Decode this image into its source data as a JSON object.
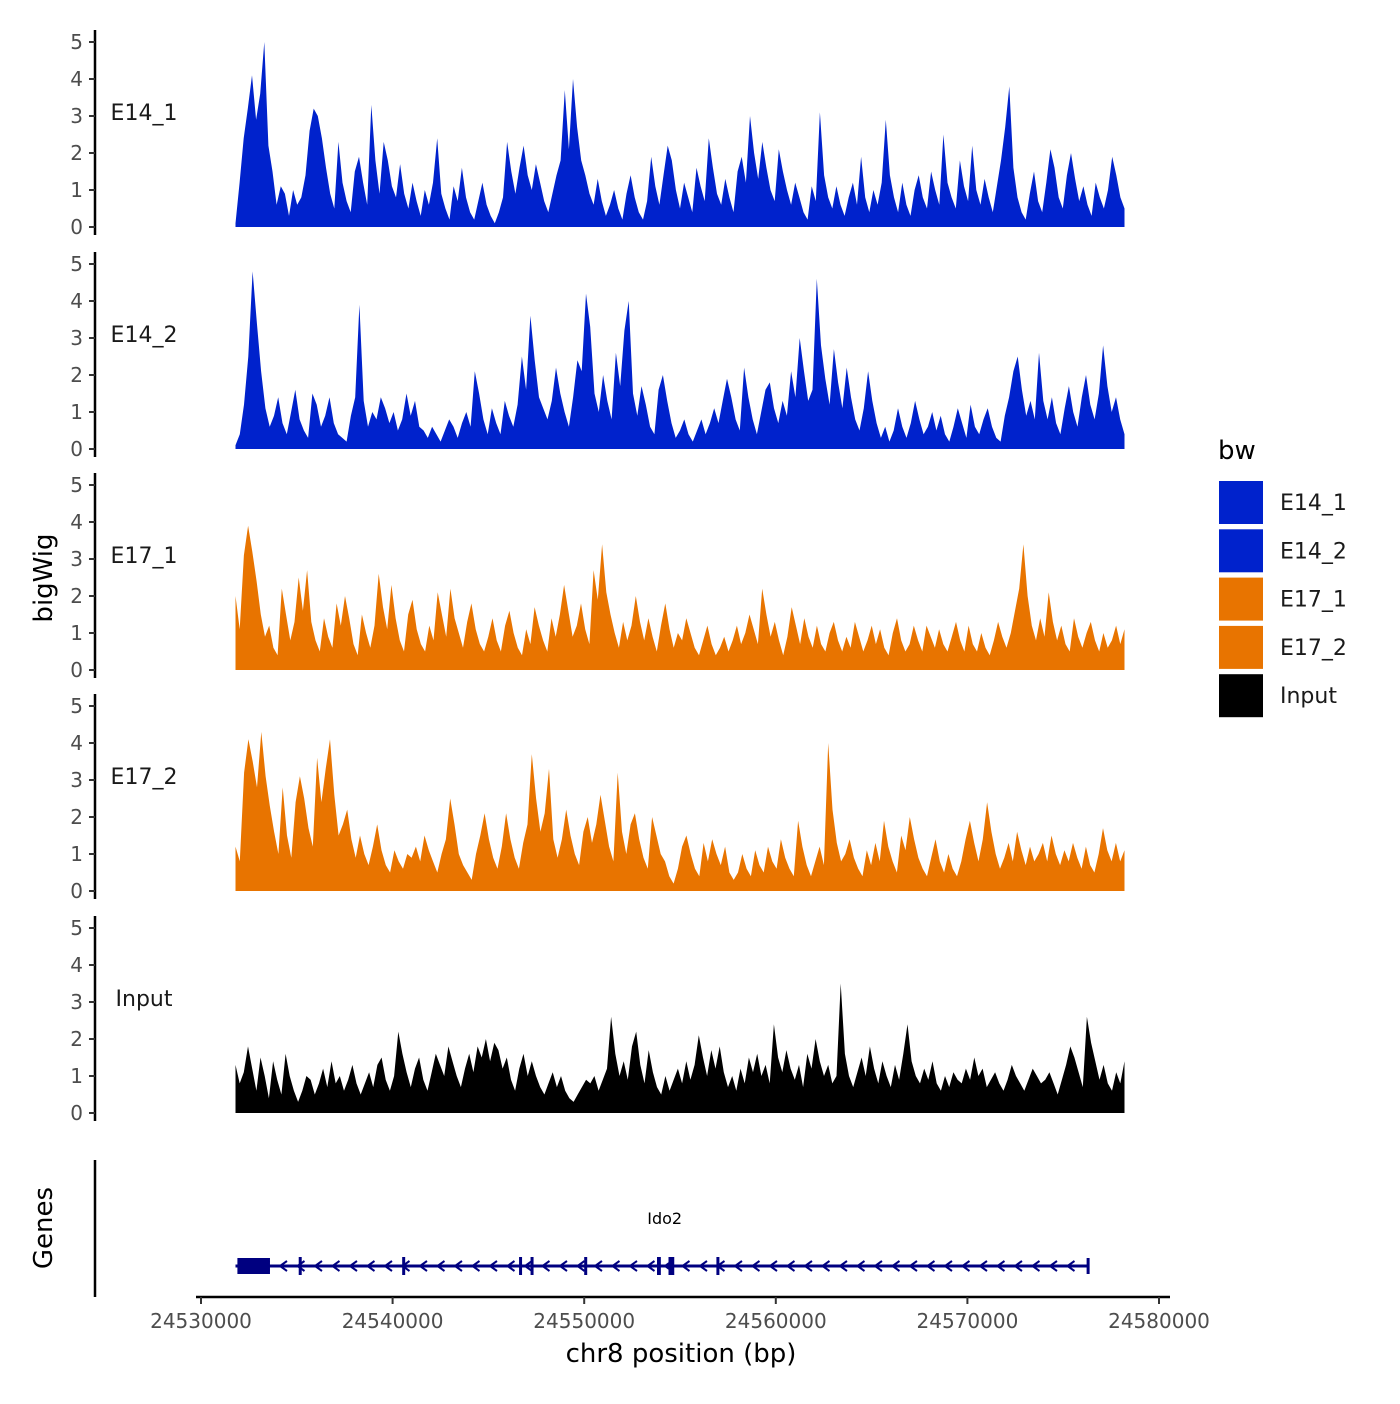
{
  "chart_data": {
    "type": "area",
    "title": "",
    "ylabel": "bigWig",
    "xlabel": "chr8 position (bp)",
    "gene_track_label": "Genes",
    "x_range": [
      24531800,
      24578200
    ],
    "xlim": [
      24529700,
      24580500
    ],
    "ylim": [
      0,
      5
    ],
    "y_ticks": [
      "0",
      "1",
      "2",
      "3",
      "4",
      "5"
    ],
    "x_ticks": [
      {
        "value": 24530000,
        "label": "24530000"
      },
      {
        "value": 24540000,
        "label": "24540000"
      },
      {
        "value": 24550000,
        "label": "24550000"
      },
      {
        "value": 24560000,
        "label": "24560000"
      },
      {
        "value": 24570000,
        "label": "24570000"
      },
      {
        "value": 24580000,
        "label": "24580000"
      }
    ],
    "legend": {
      "title": "bw",
      "position": "right",
      "entries": [
        {
          "name": "E14_1",
          "color": "#0022CC"
        },
        {
          "name": "E14_2",
          "color": "#0022CC"
        },
        {
          "name": "E17_1",
          "color": "#E87400"
        },
        {
          "name": "E17_2",
          "color": "#E87400"
        },
        {
          "name": "Input",
          "color": "#000000"
        }
      ]
    },
    "series": [
      {
        "name": "E14_1",
        "color": "#0022CC",
        "values": [
          0.1,
          1.2,
          2.4,
          3.2,
          4.1,
          2.9,
          3.6,
          5.0,
          2.2,
          1.5,
          0.6,
          1.1,
          0.9,
          0.3,
          1.0,
          0.6,
          0.8,
          1.4,
          2.6,
          3.2,
          3.0,
          2.4,
          1.6,
          0.9,
          0.5,
          2.3,
          1.2,
          0.7,
          0.4,
          1.5,
          1.9,
          1.2,
          0.6,
          3.3,
          1.8,
          0.9,
          2.3,
          1.8,
          1.1,
          0.8,
          1.7,
          0.9,
          0.5,
          1.2,
          0.7,
          0.3,
          1.0,
          0.6,
          1.2,
          2.4,
          0.9,
          0.5,
          0.2,
          1.1,
          0.7,
          1.6,
          0.8,
          0.4,
          0.2,
          0.7,
          1.2,
          0.6,
          0.3,
          0.1,
          0.4,
          0.8,
          2.3,
          1.5,
          0.9,
          1.6,
          2.2,
          1.4,
          1.0,
          1.7,
          1.2,
          0.7,
          0.4,
          0.9,
          1.4,
          1.8,
          3.7,
          2.1,
          4.0,
          2.7,
          1.8,
          1.4,
          0.9,
          0.6,
          1.3,
          0.7,
          0.3,
          0.6,
          1.0,
          0.5,
          0.2,
          0.9,
          1.4,
          0.8,
          0.4,
          0.2,
          0.7,
          1.9,
          1.1,
          0.6,
          1.4,
          2.2,
          1.8,
          1.0,
          0.5,
          1.2,
          0.8,
          0.4,
          1.6,
          1.1,
          0.7,
          2.4,
          1.6,
          0.9,
          0.6,
          1.3,
          0.8,
          0.4,
          1.5,
          1.9,
          1.2,
          3.0,
          2.0,
          1.3,
          2.3,
          1.6,
          1.0,
          0.7,
          2.1,
          1.5,
          1.0,
          0.6,
          1.2,
          0.8,
          0.4,
          0.2,
          1.1,
          0.7,
          3.1,
          1.4,
          0.8,
          0.5,
          1.1,
          0.6,
          0.3,
          0.8,
          1.2,
          0.6,
          1.9,
          0.8,
          0.4,
          1.0,
          0.6,
          1.2,
          2.9,
          1.4,
          0.8,
          0.4,
          1.2,
          0.6,
          0.3,
          1.0,
          1.4,
          0.8,
          0.5,
          1.5,
          1.0,
          0.6,
          2.5,
          1.2,
          0.8,
          0.5,
          1.8,
          1.1,
          0.7,
          2.2,
          1.0,
          0.6,
          1.3,
          0.8,
          0.4,
          1.1,
          1.8,
          2.7,
          3.8,
          1.6,
          0.8,
          0.4,
          0.2,
          0.9,
          1.5,
          0.7,
          0.4,
          1.2,
          2.1,
          1.6,
          0.8,
          0.5,
          1.4,
          2.0,
          1.3,
          0.7,
          1.1,
          0.6,
          0.3,
          1.2,
          0.8,
          0.5,
          1.0,
          1.9,
          1.4,
          0.8,
          0.5
        ]
      },
      {
        "name": "E14_2",
        "color": "#0022CC",
        "values": [
          0.1,
          0.4,
          1.2,
          2.5,
          4.8,
          3.4,
          2.1,
          1.1,
          0.6,
          0.9,
          1.4,
          0.7,
          0.4,
          1.0,
          1.6,
          0.8,
          0.5,
          0.3,
          1.5,
          1.2,
          0.6,
          0.9,
          1.4,
          0.7,
          0.4,
          0.3,
          0.2,
          0.9,
          1.4,
          3.9,
          1.3,
          0.6,
          1.0,
          0.8,
          1.4,
          1.1,
          0.7,
          1.0,
          0.5,
          0.8,
          1.5,
          0.9,
          1.3,
          0.6,
          0.5,
          0.3,
          0.6,
          0.4,
          0.2,
          0.5,
          0.8,
          0.6,
          0.3,
          0.7,
          1.0,
          0.6,
          2.1,
          1.5,
          0.8,
          0.4,
          1.1,
          0.7,
          0.4,
          1.3,
          0.9,
          0.6,
          1.2,
          2.5,
          1.6,
          3.6,
          2.4,
          1.4,
          1.1,
          0.8,
          1.3,
          2.2,
          1.5,
          1.0,
          0.6,
          1.4,
          2.4,
          2.1,
          4.2,
          3.3,
          1.5,
          1.0,
          2.0,
          1.3,
          0.8,
          2.6,
          1.7,
          3.2,
          4.0,
          1.5,
          0.9,
          1.7,
          1.2,
          0.6,
          0.4,
          1.6,
          2.0,
          1.3,
          0.7,
          0.3,
          0.5,
          0.8,
          0.4,
          0.2,
          0.5,
          0.8,
          0.4,
          0.7,
          1.1,
          0.7,
          1.3,
          1.9,
          1.4,
          0.8,
          0.5,
          2.2,
          1.4,
          0.8,
          0.4,
          1.0,
          1.6,
          1.8,
          1.1,
          0.7,
          1.3,
          0.9,
          2.1,
          1.4,
          3.0,
          2.1,
          1.3,
          1.6,
          4.6,
          2.8,
          1.9,
          1.2,
          2.7,
          1.8,
          1.1,
          2.2,
          1.4,
          0.8,
          0.5,
          1.1,
          2.1,
          1.3,
          0.7,
          0.3,
          0.6,
          0.2,
          0.5,
          1.1,
          0.6,
          0.3,
          0.7,
          1.3,
          0.8,
          0.4,
          0.6,
          1.0,
          0.5,
          0.9,
          0.4,
          0.2,
          0.6,
          1.1,
          0.7,
          0.3,
          1.2,
          0.6,
          0.4,
          0.8,
          1.1,
          0.6,
          0.3,
          0.2,
          0.9,
          1.4,
          2.1,
          2.5,
          1.6,
          0.9,
          1.3,
          0.8,
          2.6,
          1.3,
          0.8,
          1.4,
          0.7,
          0.4,
          1.1,
          1.7,
          1.0,
          0.6,
          1.4,
          2.0,
          1.2,
          0.8,
          1.5,
          2.8,
          1.7,
          1.0,
          1.4,
          0.8,
          0.4
        ]
      },
      {
        "name": "E17_1",
        "color": "#E87400",
        "values": [
          2.0,
          1.1,
          3.1,
          3.9,
          3.2,
          2.4,
          1.5,
          0.9,
          1.2,
          0.6,
          0.4,
          2.2,
          1.5,
          0.8,
          1.3,
          2.5,
          1.6,
          2.7,
          1.3,
          0.8,
          0.5,
          1.4,
          0.9,
          0.6,
          1.8,
          1.2,
          2.0,
          1.4,
          0.7,
          0.4,
          1.5,
          1.0,
          0.6,
          1.2,
          2.6,
          1.7,
          1.1,
          2.3,
          1.4,
          0.8,
          0.5,
          1.5,
          1.9,
          1.1,
          0.7,
          0.5,
          1.2,
          0.8,
          2.1,
          1.5,
          0.9,
          2.2,
          1.4,
          1.0,
          0.6,
          1.3,
          1.8,
          1.1,
          0.7,
          0.5,
          0.9,
          1.4,
          0.8,
          0.5,
          1.2,
          1.6,
          1.0,
          0.6,
          0.4,
          1.1,
          0.7,
          1.7,
          1.2,
          0.8,
          0.5,
          1.4,
          0.9,
          1.5,
          2.3,
          1.6,
          0.9,
          1.2,
          1.8,
          1.1,
          0.7,
          2.7,
          1.9,
          3.4,
          2.1,
          1.5,
          1.0,
          0.6,
          1.3,
          0.8,
          1.2,
          2.0,
          1.3,
          0.8,
          1.4,
          0.9,
          0.5,
          1.2,
          1.8,
          1.1,
          0.6,
          1.0,
          0.8,
          1.4,
          1.0,
          0.6,
          0.4,
          0.8,
          1.2,
          0.7,
          0.4,
          0.6,
          0.9,
          0.5,
          0.8,
          1.2,
          0.7,
          1.0,
          1.5,
          1.1,
          0.7,
          2.2,
          1.5,
          0.9,
          1.3,
          0.8,
          0.4,
          0.9,
          1.7,
          1.2,
          0.7,
          1.4,
          0.9,
          0.6,
          1.2,
          0.7,
          0.5,
          1.0,
          1.3,
          0.8,
          0.5,
          0.9,
          0.6,
          1.3,
          0.9,
          0.5,
          0.8,
          1.2,
          0.7,
          1.1,
          0.6,
          0.4,
          1.0,
          1.4,
          0.8,
          0.5,
          0.7,
          1.2,
          0.8,
          0.5,
          1.2,
          0.9,
          0.6,
          1.1,
          0.7,
          0.5,
          0.9,
          1.3,
          0.8,
          0.5,
          1.2,
          0.7,
          0.5,
          1.0,
          0.6,
          0.4,
          0.8,
          1.3,
          0.9,
          0.6,
          1.0,
          1.6,
          2.2,
          3.4,
          2.0,
          1.2,
          0.8,
          1.4,
          0.9,
          2.1,
          1.3,
          0.8,
          1.2,
          0.7,
          0.5,
          1.4,
          0.9,
          0.6,
          1.0,
          1.3,
          0.8,
          0.5,
          1.0,
          0.6,
          0.8,
          1.2,
          0.7,
          1.1
        ]
      },
      {
        "name": "E17_2",
        "color": "#E87400",
        "values": [
          1.2,
          0.8,
          3.2,
          4.1,
          3.5,
          2.8,
          4.3,
          3.1,
          2.3,
          1.6,
          1.0,
          2.8,
          1.5,
          0.9,
          2.4,
          3.1,
          2.5,
          1.7,
          1.2,
          3.6,
          2.4,
          3.3,
          4.1,
          2.6,
          1.5,
          1.8,
          2.2,
          1.4,
          0.9,
          1.5,
          1.0,
          0.7,
          1.2,
          1.8,
          1.1,
          0.7,
          0.5,
          1.1,
          0.8,
          0.6,
          1.0,
          0.9,
          1.2,
          0.8,
          1.5,
          1.1,
          0.8,
          0.5,
          1.0,
          1.4,
          2.5,
          1.8,
          1.0,
          0.7,
          0.5,
          0.3,
          1.0,
          1.5,
          2.1,
          1.4,
          0.9,
          0.6,
          1.2,
          2.1,
          1.4,
          0.9,
          0.6,
          1.3,
          1.8,
          3.7,
          2.5,
          1.6,
          2.1,
          3.3,
          1.4,
          0.9,
          1.4,
          2.2,
          1.5,
          1.0,
          0.7,
          1.6,
          2.0,
          1.3,
          1.8,
          2.6,
          1.9,
          1.2,
          0.8,
          3.2,
          1.6,
          1.0,
          1.8,
          2.1,
          1.4,
          0.9,
          0.6,
          2.0,
          1.5,
          1.0,
          0.8,
          0.4,
          0.2,
          0.6,
          1.2,
          1.5,
          1.0,
          0.6,
          0.4,
          1.3,
          0.8,
          1.4,
          1.0,
          0.7,
          1.2,
          0.5,
          0.3,
          0.5,
          1.0,
          0.6,
          0.4,
          1.1,
          0.7,
          0.5,
          1.2,
          0.8,
          0.6,
          1.4,
          0.9,
          0.6,
          0.4,
          1.9,
          1.2,
          0.7,
          0.4,
          0.8,
          1.2,
          0.7,
          4.0,
          2.2,
          1.3,
          0.8,
          1.0,
          1.4,
          0.9,
          0.6,
          0.4,
          1.1,
          0.7,
          1.3,
          0.8,
          1.9,
          1.2,
          0.8,
          0.5,
          1.5,
          1.1,
          2.0,
          1.4,
          0.9,
          0.6,
          0.4,
          0.9,
          1.4,
          0.8,
          0.5,
          1.0,
          0.6,
          0.4,
          0.8,
          1.4,
          1.9,
          1.3,
          0.8,
          1.4,
          2.4,
          1.6,
          1.0,
          0.6,
          0.9,
          1.3,
          0.8,
          1.6,
          1.1,
          0.7,
          1.2,
          0.8,
          1.0,
          1.3,
          0.8,
          1.5,
          1.0,
          0.7,
          1.1,
          0.8,
          1.3,
          0.9,
          0.6,
          1.2,
          0.7,
          0.5,
          1.0,
          1.7,
          1.1,
          0.8,
          1.3,
          0.8,
          1.1
        ]
      },
      {
        "name": "Input",
        "color": "#000000",
        "values": [
          1.3,
          0.8,
          1.1,
          1.8,
          1.2,
          0.6,
          1.5,
          1.0,
          0.4,
          1.4,
          0.9,
          0.5,
          1.6,
          1.0,
          0.6,
          0.3,
          0.6,
          1.0,
          0.9,
          0.5,
          0.8,
          1.2,
          0.7,
          1.4,
          0.8,
          1.0,
          0.6,
          0.9,
          1.3,
          0.8,
          0.5,
          0.8,
          1.1,
          0.7,
          1.3,
          1.5,
          0.9,
          0.6,
          1.0,
          2.2,
          1.6,
          1.1,
          0.7,
          1.2,
          1.5,
          0.9,
          0.6,
          1.1,
          1.6,
          1.3,
          1.0,
          1.8,
          1.4,
          1.0,
          0.7,
          1.2,
          1.6,
          1.1,
          1.8,
          1.5,
          2.0,
          1.4,
          1.9,
          1.7,
          1.2,
          1.5,
          0.9,
          0.6,
          1.2,
          1.6,
          1.0,
          1.4,
          1.0,
          0.7,
          0.5,
          0.8,
          1.1,
          0.7,
          1.0,
          0.6,
          0.4,
          0.3,
          0.5,
          0.7,
          0.9,
          0.8,
          1.0,
          0.6,
          0.9,
          1.2,
          2.6,
          1.6,
          1.0,
          1.4,
          0.9,
          1.8,
          2.2,
          1.3,
          0.8,
          1.7,
          1.1,
          0.7,
          0.5,
          1.0,
          0.6,
          0.9,
          1.2,
          0.8,
          1.4,
          0.9,
          1.3,
          2.1,
          1.5,
          1.0,
          1.7,
          1.2,
          1.8,
          1.1,
          0.7,
          1.0,
          0.6,
          1.2,
          0.8,
          1.5,
          1.1,
          1.6,
          1.0,
          1.3,
          0.8,
          2.4,
          1.5,
          1.1,
          1.7,
          1.2,
          0.9,
          1.3,
          0.7,
          1.6,
          1.2,
          2.0,
          1.4,
          1.0,
          1.3,
          0.8,
          1.0,
          3.5,
          1.6,
          1.0,
          0.7,
          1.1,
          1.5,
          1.0,
          1.8,
          1.2,
          0.8,
          1.4,
          1.0,
          0.7,
          1.3,
          0.9,
          1.6,
          2.4,
          1.4,
          1.0,
          0.8,
          1.2,
          0.9,
          1.4,
          0.8,
          0.6,
          1.0,
          0.7,
          1.1,
          0.9,
          0.8,
          1.2,
          0.9,
          1.5,
          1.0,
          1.2,
          0.7,
          0.9,
          1.1,
          0.8,
          0.6,
          0.9,
          1.3,
          1.0,
          0.8,
          0.6,
          0.9,
          1.2,
          1.0,
          0.8,
          0.9,
          1.1,
          0.8,
          0.5,
          0.9,
          1.3,
          1.8,
          1.5,
          1.1,
          0.7,
          2.6,
          1.9,
          1.4,
          0.9,
          1.3,
          0.8,
          0.6,
          1.1,
          0.8,
          1.4
        ]
      }
    ],
    "gene": {
      "name": "Ido2",
      "strand": "-",
      "color": "#000080",
      "start": 24531800,
      "end": 24576300,
      "exons": [
        {
          "start": 24531900,
          "end": 24533600
        },
        {
          "start": 24535100,
          "end": 24535250
        },
        {
          "start": 24540500,
          "end": 24540650
        },
        {
          "start": 24546600,
          "end": 24546700
        },
        {
          "start": 24547200,
          "end": 24547300
        },
        {
          "start": 24550000,
          "end": 24550150
        },
        {
          "start": 24553800,
          "end": 24554000
        },
        {
          "start": 24554400,
          "end": 24554700
        },
        {
          "start": 24556900,
          "end": 24557000
        }
      ]
    }
  }
}
